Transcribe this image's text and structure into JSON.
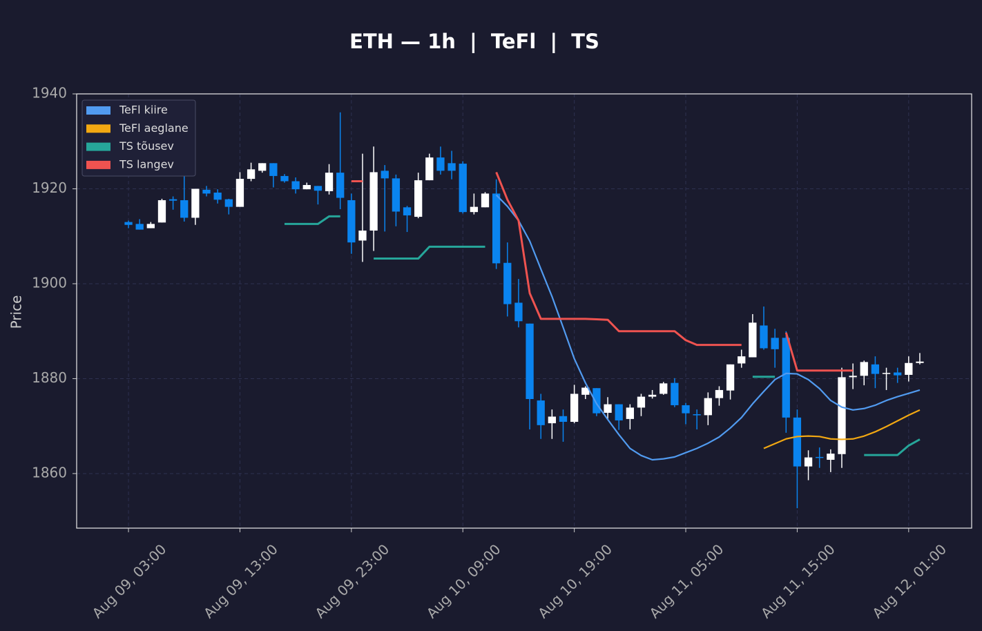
{
  "chart_data": {
    "type": "candlestick",
    "title": "ETH — 1h  |  TeFl  |  TS",
    "y_label": "Price",
    "x": [
      "Aug 09, 03:00",
      "Aug 09, 04:00",
      "Aug 09, 05:00",
      "Aug 09, 06:00",
      "Aug 09, 07:00",
      "Aug 09, 08:00",
      "Aug 09, 09:00",
      "Aug 09, 10:00",
      "Aug 09, 11:00",
      "Aug 09, 12:00",
      "Aug 09, 13:00",
      "Aug 09, 14:00",
      "Aug 09, 15:00",
      "Aug 09, 16:00",
      "Aug 09, 17:00",
      "Aug 09, 18:00",
      "Aug 09, 19:00",
      "Aug 09, 20:00",
      "Aug 09, 21:00",
      "Aug 09, 22:00",
      "Aug 09, 23:00",
      "Aug 10, 00:00",
      "Aug 10, 01:00",
      "Aug 10, 02:00",
      "Aug 10, 03:00",
      "Aug 10, 04:00",
      "Aug 10, 05:00",
      "Aug 10, 06:00",
      "Aug 10, 07:00",
      "Aug 10, 08:00",
      "Aug 10, 09:00",
      "Aug 10, 10:00",
      "Aug 10, 11:00",
      "Aug 10, 12:00",
      "Aug 10, 13:00",
      "Aug 10, 14:00",
      "Aug 10, 15:00",
      "Aug 10, 16:00",
      "Aug 10, 17:00",
      "Aug 10, 18:00",
      "Aug 10, 19:00",
      "Aug 10, 20:00",
      "Aug 10, 21:00",
      "Aug 10, 22:00",
      "Aug 10, 23:00",
      "Aug 11, 00:00",
      "Aug 11, 01:00",
      "Aug 11, 02:00",
      "Aug 11, 03:00",
      "Aug 11, 04:00",
      "Aug 11, 05:00",
      "Aug 11, 06:00",
      "Aug 11, 07:00",
      "Aug 11, 08:00",
      "Aug 11, 09:00",
      "Aug 11, 10:00",
      "Aug 11, 11:00",
      "Aug 11, 12:00",
      "Aug 11, 13:00",
      "Aug 11, 14:00",
      "Aug 11, 15:00",
      "Aug 11, 16:00",
      "Aug 11, 17:00",
      "Aug 11, 18:00",
      "Aug 11, 19:00",
      "Aug 11, 20:00",
      "Aug 11, 21:00",
      "Aug 11, 22:00",
      "Aug 11, 23:00",
      "Aug 12, 00:00",
      "Aug 12, 01:00",
      "Aug 12, 02:00"
    ],
    "open": [
      1913.0,
      1912.6,
      1911.7,
      1912.9,
      1917.8,
      1917.6,
      1913.9,
      1919.8,
      1919.2,
      1917.8,
      1916.2,
      1922.1,
      1923.8,
      1925.4,
      1922.7,
      1921.6,
      1919.9,
      1920.6,
      1919.5,
      1923.4,
      1917.6,
      1909.1,
      1911.2,
      1923.8,
      1922.2,
      1916.1,
      1914.1,
      1921.8,
      1926.6,
      1925.4,
      1925.3,
      1915.1,
      1916.1,
      1919.0,
      1904.4,
      1896.0,
      1891.6,
      1875.4,
      1870.6,
      1872.1,
      1870.9,
      1876.6,
      1878.0,
      1872.8,
      1874.6,
      1871.5,
      1873.9,
      1876.2,
      1876.8,
      1879.1,
      1874.4,
      1872.5,
      1872.3,
      1875.9,
      1877.5,
      1883.2,
      1884.5,
      1891.2,
      1888.6,
      1888.6,
      1871.8,
      1861.5,
      1863.5,
      1862.9,
      1864.1,
      1880.3,
      1880.6,
      1883.0,
      1881.0,
      1881.3,
      1880.8,
      1883.3
    ],
    "high": [
      1913.3,
      1913.6,
      1913.0,
      1917.9,
      1918.4,
      1923.1,
      1920.0,
      1920.6,
      1919.9,
      1917.9,
      1923.5,
      1925.5,
      1925.4,
      1925.4,
      1923.1,
      1922.4,
      1921.3,
      1920.6,
      1925.2,
      1936.1,
      1919.0,
      1927.4,
      1928.9,
      1925.0,
      1923.0,
      1916.4,
      1923.4,
      1927.4,
      1928.9,
      1928.0,
      1925.8,
      1919.0,
      1919.3,
      1922.0,
      1908.7,
      1901.0,
      1891.6,
      1876.8,
      1873.5,
      1873.5,
      1878.7,
      1878.4,
      1878.0,
      1876.1,
      1874.6,
      1874.6,
      1876.8,
      1877.6,
      1879.3,
      1880.1,
      1874.9,
      1873.5,
      1877.1,
      1878.4,
      1883.0,
      1886.1,
      1893.6,
      1895.2,
      1890.5,
      1890.0,
      1873.5,
      1864.9,
      1865.5,
      1865.1,
      1882.3,
      1883.2,
      1883.8,
      1884.7,
      1882.3,
      1882.3,
      1884.7,
      1885.4
    ],
    "low": [
      1911.7,
      1911.4,
      1911.7,
      1912.9,
      1915.6,
      1913.1,
      1912.4,
      1918.4,
      1916.9,
      1914.6,
      1916.2,
      1921.6,
      1923.4,
      1920.3,
      1921.3,
      1919.0,
      1919.9,
      1916.7,
      1918.8,
      1915.7,
      1906.3,
      1904.6,
      1906.9,
      1911.0,
      1912.1,
      1910.9,
      1913.8,
      1921.8,
      1923.0,
      1922.0,
      1914.8,
      1914.6,
      1916.1,
      1903.1,
      1893.1,
      1890.8,
      1869.3,
      1867.3,
      1867.3,
      1866.7,
      1870.6,
      1875.7,
      1872.1,
      1871.5,
      1869.2,
      1869.3,
      1872.1,
      1875.8,
      1876.6,
      1874.0,
      1870.4,
      1869.3,
      1870.2,
      1874.3,
      1875.6,
      1882.3,
      1884.5,
      1886.1,
      1882.3,
      1868.6,
      1852.7,
      1858.6,
      1861.2,
      1860.3,
      1861.2,
      1877.8,
      1878.6,
      1878.0,
      1877.6,
      1879.1,
      1879.4,
      1883.0
    ],
    "close": [
      1912.4,
      1911.4,
      1912.6,
      1917.6,
      1917.5,
      1913.9,
      1920.0,
      1919.0,
      1917.7,
      1916.2,
      1922.1,
      1924.1,
      1925.4,
      1922.7,
      1921.6,
      1919.9,
      1920.8,
      1919.6,
      1923.4,
      1918.1,
      1908.7,
      1911.2,
      1923.5,
      1922.2,
      1915.2,
      1914.4,
      1921.8,
      1926.6,
      1923.8,
      1923.8,
      1915.1,
      1916.2,
      1919.0,
      1904.3,
      1895.7,
      1892.1,
      1875.7,
      1870.2,
      1872.0,
      1870.9,
      1876.8,
      1878.1,
      1872.7,
      1874.6,
      1871.2,
      1873.9,
      1876.2,
      1876.6,
      1879.0,
      1874.4,
      1872.7,
      1872.3,
      1875.9,
      1877.6,
      1883.0,
      1884.7,
      1891.8,
      1886.4,
      1886.2,
      1871.8,
      1861.5,
      1863.4,
      1863.3,
      1864.2,
      1880.3,
      1880.6,
      1883.5,
      1881.0,
      1881.2,
      1880.7,
      1883.3,
      1883.6
    ],
    "up_color": "#ffffff",
    "down_color": "#0a84ef",
    "lines": [
      {
        "name": "TeFl kiire",
        "color": "#519bf0",
        "values": [
          null,
          null,
          null,
          null,
          null,
          null,
          null,
          null,
          null,
          null,
          null,
          null,
          null,
          null,
          null,
          null,
          null,
          null,
          null,
          null,
          null,
          null,
          null,
          null,
          null,
          null,
          null,
          null,
          null,
          null,
          null,
          null,
          null,
          1918.7,
          1916.3,
          1913.3,
          1909.0,
          1903.1,
          1897.3,
          1890.8,
          1884.2,
          1879.1,
          1874.7,
          1871.4,
          1868.2,
          1865.3,
          1863.8,
          1862.9,
          1863.1,
          1863.5,
          1864.4,
          1865.3,
          1866.4,
          1867.7,
          1869.6,
          1871.8,
          1874.7,
          1877.3,
          1879.8,
          1881.1,
          1881.0,
          1879.8,
          1877.9,
          1875.4,
          1874.0,
          1873.4,
          1873.7,
          1874.4,
          1875.4,
          1876.2,
          1876.9,
          1877.6
        ]
      },
      {
        "name": "TeFl aeglane",
        "color": "#f2a812",
        "values": [
          null,
          null,
          null,
          null,
          null,
          null,
          null,
          null,
          null,
          null,
          null,
          null,
          null,
          null,
          null,
          null,
          null,
          null,
          null,
          null,
          null,
          null,
          null,
          null,
          null,
          null,
          null,
          null,
          null,
          null,
          null,
          null,
          null,
          null,
          null,
          null,
          null,
          null,
          null,
          null,
          null,
          null,
          null,
          null,
          null,
          null,
          null,
          null,
          null,
          null,
          null,
          null,
          null,
          null,
          null,
          null,
          null,
          1865.3,
          1866.3,
          1867.3,
          1867.8,
          1867.9,
          1867.8,
          1867.3,
          1867.2,
          1867.3,
          1867.9,
          1868.8,
          1869.9,
          1871.1,
          1872.3,
          1873.4
        ]
      },
      {
        "name": "TS tõusev",
        "color": "#26a69a",
        "values": [
          null,
          null,
          null,
          null,
          null,
          null,
          null,
          null,
          null,
          null,
          null,
          null,
          null,
          null,
          1912.6,
          1912.6,
          1912.6,
          1912.6,
          1914.2,
          1914.2,
          null,
          null,
          1905.3,
          1905.3,
          1905.3,
          1905.3,
          1905.3,
          1907.8,
          1907.8,
          1907.8,
          1907.8,
          1907.8,
          1907.8,
          null,
          null,
          null,
          null,
          null,
          null,
          null,
          null,
          null,
          null,
          null,
          null,
          null,
          null,
          null,
          null,
          null,
          null,
          null,
          null,
          null,
          null,
          null,
          1880.4,
          1880.4,
          1880.4,
          null,
          null,
          null,
          null,
          null,
          null,
          null,
          1863.9,
          1863.9,
          1863.9,
          1863.9,
          1865.9,
          1867.2
        ]
      },
      {
        "name": "TS langev",
        "color": "#ef5350",
        "values": [
          null,
          null,
          null,
          null,
          null,
          null,
          null,
          null,
          null,
          null,
          null,
          null,
          null,
          null,
          null,
          null,
          null,
          null,
          null,
          null,
          1921.6,
          1921.6,
          null,
          null,
          null,
          null,
          null,
          null,
          null,
          null,
          null,
          null,
          null,
          1923.5,
          1917.7,
          1913.3,
          1898.0,
          1892.6,
          1892.6,
          1892.6,
          1892.6,
          1892.6,
          1892.5,
          1892.4,
          1890.0,
          1890.0,
          1890.0,
          1890.0,
          1890.0,
          1890.0,
          1888.1,
          1887.1,
          1887.1,
          1887.1,
          1887.1,
          1887.1,
          null,
          null,
          null,
          1889.7,
          1881.7,
          1881.7,
          1881.7,
          1881.7,
          1881.7,
          1881.7,
          null,
          null,
          null,
          null,
          null,
          null
        ]
      }
    ],
    "xlim": [
      -4.65,
      75.65
    ],
    "xticks": [
      {
        "value": 0,
        "label": "Aug 09, 03:00"
      },
      {
        "value": 10,
        "label": "Aug 09, 13:00"
      },
      {
        "value": 20,
        "label": "Aug 09, 23:00"
      },
      {
        "value": 30,
        "label": "Aug 10, 09:00"
      },
      {
        "value": 40,
        "label": "Aug 10, 19:00"
      },
      {
        "value": 50,
        "label": "Aug 11, 05:00"
      },
      {
        "value": 60,
        "label": "Aug 11, 15:00"
      },
      {
        "value": 70,
        "label": "Aug 12, 01:00"
      }
    ],
    "ylim": [
      1848.5,
      1940
    ],
    "yticks": [
      1860,
      1880,
      1900,
      1920,
      1940
    ],
    "grid": true,
    "legend": "upper left"
  }
}
